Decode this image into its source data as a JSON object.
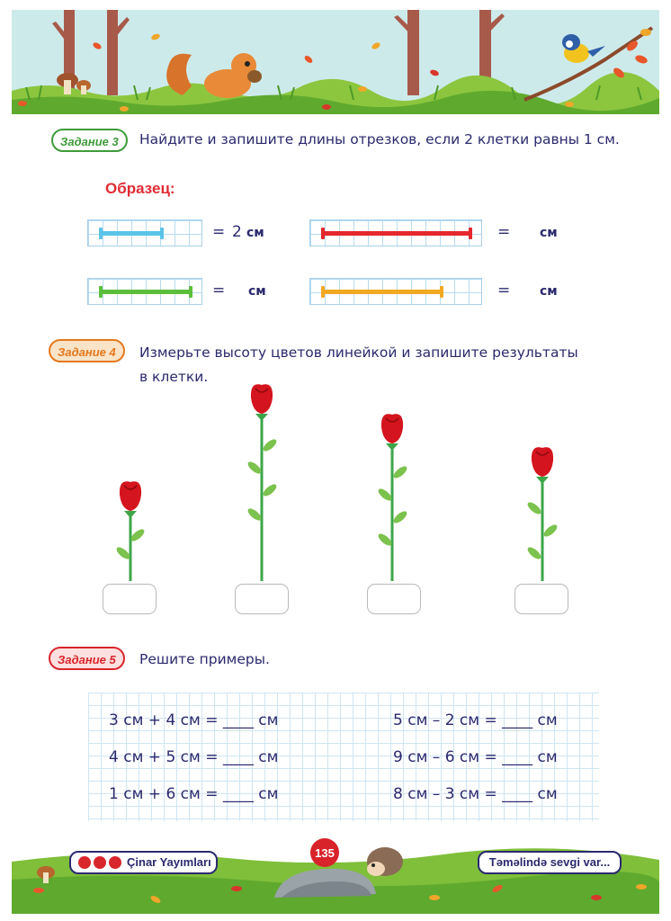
{
  "task3": {
    "tag": "Задание 3",
    "text": "Найдите и запишите длины отрезков, если 2 клетки равны 1 см.",
    "sample_label": "Образец:",
    "rows": [
      {
        "eq": "=",
        "value": "2",
        "unit": "см",
        "color": "#5bc4e8"
      },
      {
        "eq": "=",
        "value": "",
        "unit": "см",
        "color": "#e4282d"
      },
      {
        "eq": "=",
        "value": "",
        "unit": "см",
        "color": "#5cbf3b"
      },
      {
        "eq": "=",
        "value": "",
        "unit": "см",
        "color": "#f2a922"
      }
    ]
  },
  "task4": {
    "tag": "Задание 4",
    "text_line1": "Измерьте высоту цветов линейкой и запишите результаты",
    "text_line2": "в клетки."
  },
  "task5": {
    "tag": "Задание 5",
    "text": "Решите примеры.",
    "examples_left": [
      "3 см + 4 см = ____ см",
      "4 см + 5 см = ____ см",
      "1 см + 6 см = ____ см"
    ],
    "examples_right": [
      "5 см – 2 см = ____ см",
      "9 см – 6 см = ____ см",
      "8 см – 3 см = ____ см"
    ]
  },
  "footer": {
    "publisher": "Çinar Yayımları",
    "page_number": "135",
    "slogan": "Təməlində sevgi var..."
  },
  "colors": {
    "text": "#2b2a6e",
    "task3_tag": "#3e9b3a",
    "task4_tag": "#e6781d",
    "task5_tag": "#d8262c",
    "sample": "#e02b34"
  }
}
